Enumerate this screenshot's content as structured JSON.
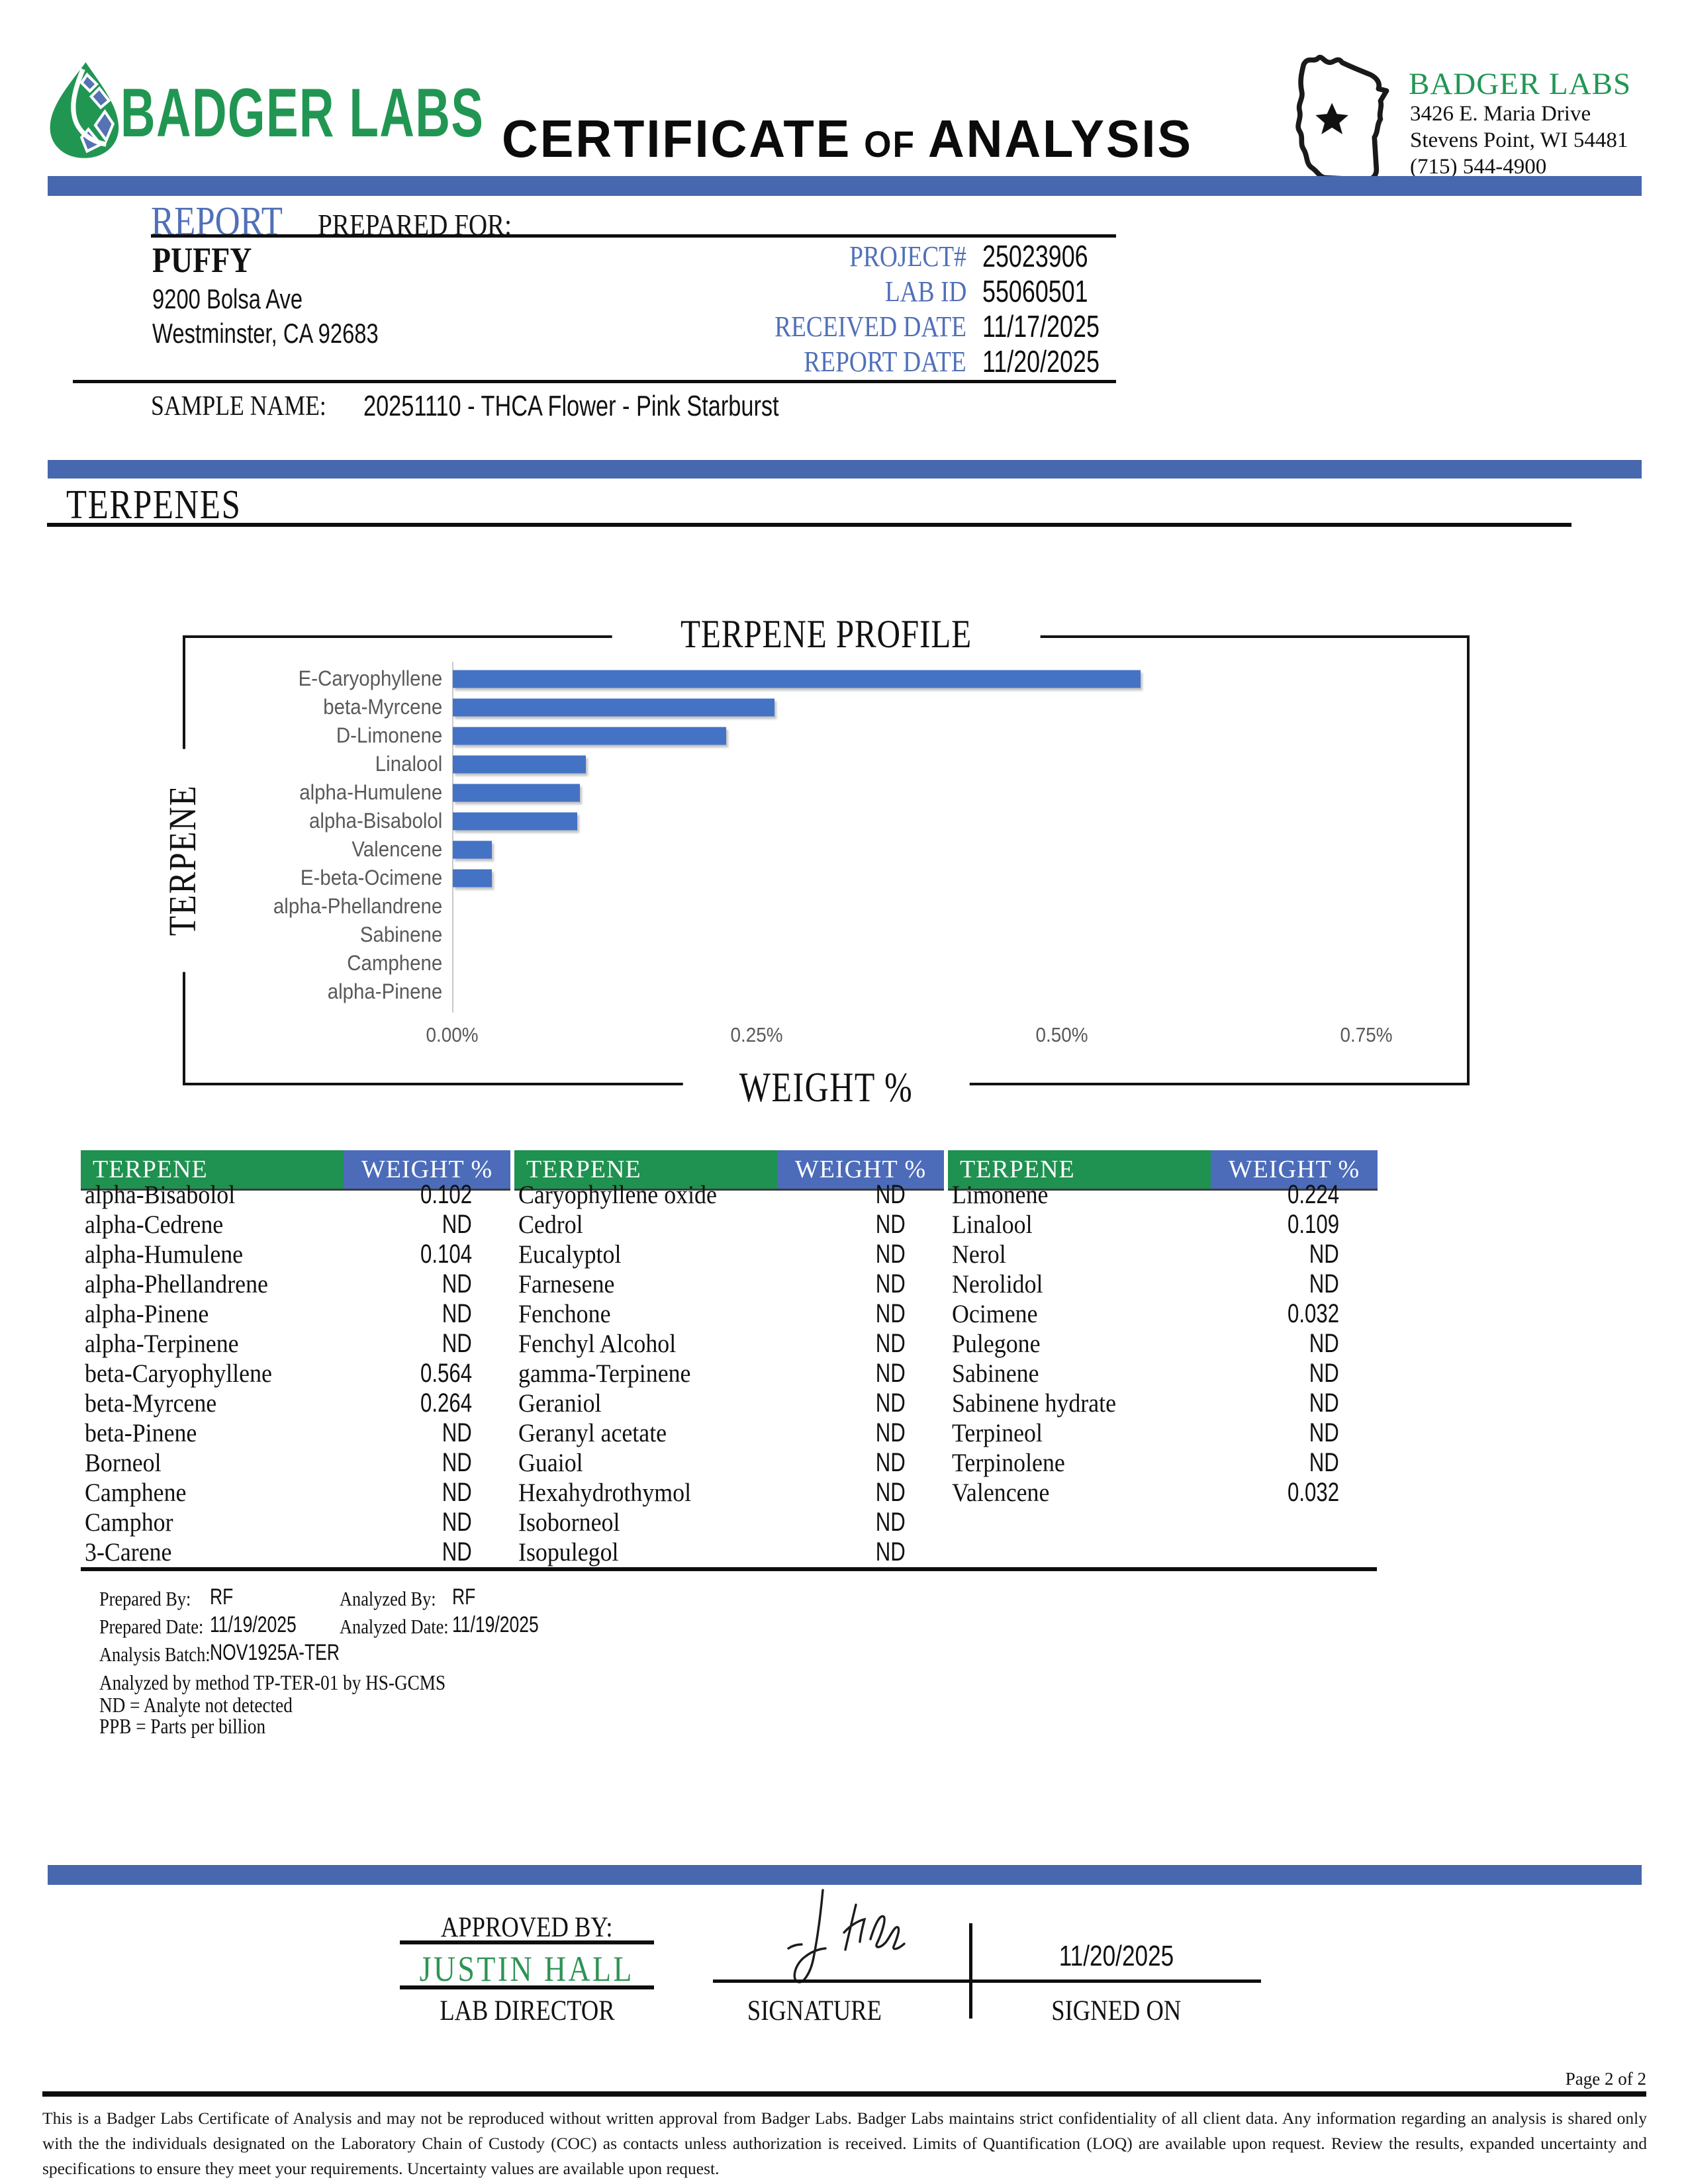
{
  "brand": {
    "wordmark": "BADGER LABS",
    "title_part1": "CERTIFICATE",
    "title_part2": "OF",
    "title_part3": "ANALYSIS",
    "lab_name": "BADGER LABS",
    "address_line1": "3426 E. Maria Drive",
    "address_line2": "Stevens Point, WI 54481",
    "phone": "(715) 544-4900"
  },
  "report": {
    "heading_report": "REPORT",
    "heading_prepared_for": "PREPARED FOR:",
    "client_name": "PUFFY",
    "client_address1": "9200 Bolsa Ave",
    "client_address2": "Westminster, CA 92683",
    "meta": [
      {
        "label": "PROJECT#",
        "value": "25023906"
      },
      {
        "label": "LAB ID",
        "value": "55060501"
      },
      {
        "label": "RECEIVED DATE",
        "value": "11/17/2025"
      },
      {
        "label": "REPORT DATE",
        "value": "11/20/2025"
      }
    ],
    "sample_name_label": "SAMPLE NAME:",
    "sample_name_value": "20251110 - THCA Flower - Pink Starburst"
  },
  "section": {
    "title": "TERPENES"
  },
  "chart_data": {
    "type": "bar",
    "orientation": "horizontal",
    "title": "TERPENE PROFILE",
    "xlabel": "WEIGHT %",
    "ylabel": "TERPENE",
    "categories": [
      "E-Caryophyllene",
      "beta-Myrcene",
      "D-Limonene",
      "Linalool",
      "alpha-Humulene",
      "alpha-Bisabolol",
      "Valencene",
      "E-beta-Ocimene",
      "alpha-Phellandrene",
      "Sabinene",
      "Camphene",
      "alpha-Pinene"
    ],
    "values": [
      0.564,
      0.264,
      0.224,
      0.109,
      0.104,
      0.102,
      0.032,
      0.032,
      0,
      0,
      0,
      0
    ],
    "x_ticks": [
      0,
      0.25,
      0.5,
      0.75
    ],
    "x_tick_labels": [
      "0.00%",
      "0.25%",
      "0.50%",
      "0.75%"
    ],
    "xlim": [
      0,
      0.828
    ],
    "grid": false,
    "legend": false,
    "bar_color": "#4472C4"
  },
  "table": {
    "header_terpene": "TERPENE",
    "header_weight": "WEIGHT %",
    "groups": [
      [
        [
          "alpha-Bisabolol",
          "0.102"
        ],
        [
          "alpha-Cedrene",
          "ND"
        ],
        [
          "alpha-Humulene",
          "0.104"
        ],
        [
          "alpha-Phellandrene",
          "ND"
        ],
        [
          "alpha-Pinene",
          "ND"
        ],
        [
          "alpha-Terpinene",
          "ND"
        ],
        [
          "beta-Caryophyllene",
          "0.564"
        ],
        [
          "beta-Myrcene",
          "0.264"
        ],
        [
          "beta-Pinene",
          "ND"
        ],
        [
          "Borneol",
          "ND"
        ],
        [
          "Camphene",
          "ND"
        ],
        [
          "Camphor",
          "ND"
        ],
        [
          "3-Carene",
          "ND"
        ]
      ],
      [
        [
          "Caryophyllene oxide",
          "ND"
        ],
        [
          "Cedrol",
          "ND"
        ],
        [
          "Eucalyptol",
          "ND"
        ],
        [
          "Farnesene",
          "ND"
        ],
        [
          "Fenchone",
          "ND"
        ],
        [
          "Fenchyl Alcohol",
          "ND"
        ],
        [
          "gamma-Terpinene",
          "ND"
        ],
        [
          "Geraniol",
          "ND"
        ],
        [
          "Geranyl acetate",
          "ND"
        ],
        [
          "Guaiol",
          "ND"
        ],
        [
          "Hexahydrothymol",
          "ND"
        ],
        [
          "Isoborneol",
          "ND"
        ],
        [
          "Isopulegol",
          "ND"
        ]
      ],
      [
        [
          "Limonene",
          "0.224"
        ],
        [
          "Linalool",
          "0.109"
        ],
        [
          "Nerol",
          "ND"
        ],
        [
          "Nerolidol",
          "ND"
        ],
        [
          "Ocimene",
          "0.032"
        ],
        [
          "Pulegone",
          "ND"
        ],
        [
          "Sabinene",
          "ND"
        ],
        [
          "Sabinene hydrate",
          "ND"
        ],
        [
          "Terpineol",
          "ND"
        ],
        [
          "Terpinolene",
          "ND"
        ],
        [
          "Valencene",
          "0.032"
        ]
      ]
    ]
  },
  "notes": {
    "prepared_by_label": "Prepared By:",
    "prepared_by": "RF",
    "analyzed_by_label": "Analyzed By:",
    "analyzed_by": "RF",
    "prepared_date_label": "Prepared Date:",
    "prepared_date": "11/19/2025",
    "analyzed_date_label": "Analyzed Date:",
    "analyzed_date": "11/19/2025",
    "analysis_batch_label": "Analysis Batch:",
    "analysis_batch": "NOV1925A-TER",
    "method_note": "Analyzed by method TP-TER-01 by HS-GCMS",
    "nd_note": "ND = Analyte not detected",
    "ppb_note": "PPB = Parts per billion"
  },
  "approval": {
    "approved_by_label": "APPROVED BY:",
    "approver_name": "JUSTIN HALL",
    "approver_title": "LAB DIRECTOR",
    "signature_label": "SIGNATURE",
    "signed_on_label": "SIGNED ON",
    "signed_on_date": "11/20/2025"
  },
  "footer": {
    "page": "Page 2 of 2",
    "disclaimer": "This is a Badger Labs Certificate of Analysis and may not be reproduced without written approval from Badger Labs. Badger Labs maintains strict confidentiality of all client data. Any information regarding an analysis is shared only with the the individuals designated on the Laboratory Chain of Custody (COC) as contacts unless authorization is received. Limits of Quantification (LOQ) are available upon request. Review the results, expanded uncertainty and specifications to ensure they meet your requirements. Uncertainty values are available upon request."
  },
  "colors": {
    "divider_blue": "#4767AE",
    "accent_blue_text": "#5170B8",
    "brand_green": "#219653",
    "table_header_green": "#1F9150",
    "table_header_blue": "#4C6CBA",
    "bar_blue": "#4472C4",
    "chart_text_gray": "#595959"
  }
}
